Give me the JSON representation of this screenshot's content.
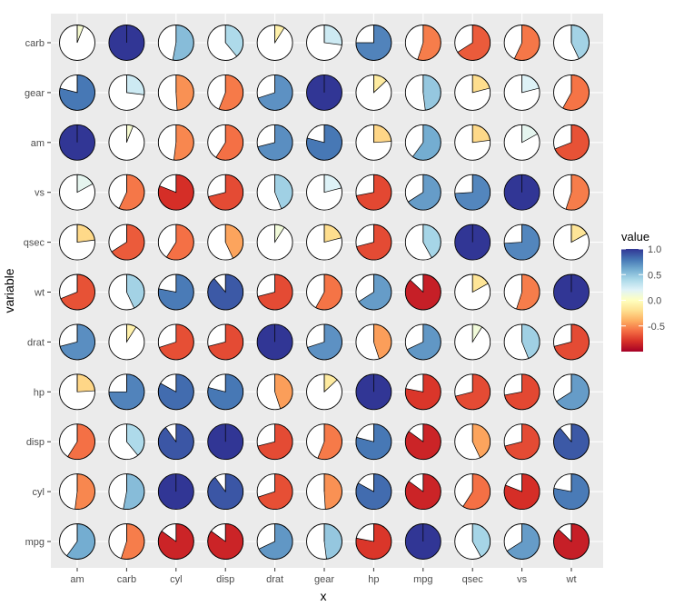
{
  "chart_data": {
    "type": "pie-correlation-matrix",
    "xlabel": "x",
    "ylabel": "variable",
    "variables": [
      "mpg",
      "cyl",
      "disp",
      "hp",
      "drat",
      "wt",
      "qsec",
      "vs",
      "am",
      "gear",
      "carb"
    ],
    "x_order": [
      "am",
      "carb",
      "cyl",
      "disp",
      "drat",
      "gear",
      "hp",
      "mpg",
      "qsec",
      "vs",
      "wt"
    ],
    "y_order_top_to_bottom": [
      "carb",
      "gear",
      "am",
      "vs",
      "qsec",
      "wt",
      "drat",
      "hp",
      "disp",
      "cyl",
      "mpg"
    ],
    "correlation_matrix": [
      [
        1.0,
        -0.85,
        -0.85,
        -0.78,
        0.68,
        -0.87,
        0.42,
        0.66,
        0.6,
        0.48,
        -0.55
      ],
      [
        -0.85,
        1.0,
        0.9,
        0.83,
        -0.7,
        0.78,
        -0.59,
        -0.81,
        -0.52,
        -0.49,
        0.53
      ],
      [
        -0.85,
        0.9,
        1.0,
        0.79,
        -0.71,
        0.89,
        -0.43,
        -0.71,
        -0.59,
        -0.56,
        0.39
      ],
      [
        -0.78,
        0.83,
        0.79,
        1.0,
        -0.45,
        0.66,
        -0.71,
        -0.72,
        -0.24,
        -0.13,
        0.75
      ],
      [
        0.68,
        -0.7,
        -0.71,
        -0.45,
        1.0,
        -0.71,
        0.09,
        0.44,
        0.71,
        0.7,
        -0.09
      ],
      [
        -0.87,
        0.78,
        0.89,
        0.66,
        -0.71,
        1.0,
        -0.17,
        -0.55,
        -0.69,
        -0.58,
        0.43
      ],
      [
        0.42,
        -0.59,
        -0.43,
        -0.71,
        0.09,
        -0.17,
        1.0,
        0.74,
        -0.23,
        -0.21,
        -0.66
      ],
      [
        0.66,
        -0.81,
        -0.71,
        -0.72,
        0.44,
        -0.55,
        0.74,
        1.0,
        0.17,
        0.21,
        -0.57
      ],
      [
        0.6,
        -0.52,
        -0.59,
        -0.24,
        0.71,
        -0.69,
        -0.23,
        0.17,
        1.0,
        0.79,
        0.06
      ],
      [
        0.48,
        -0.49,
        -0.56,
        -0.13,
        0.7,
        -0.58,
        -0.21,
        0.21,
        0.79,
        1.0,
        0.27
      ],
      [
        -0.55,
        0.53,
        0.39,
        0.75,
        -0.09,
        0.43,
        -0.66,
        -0.57,
        0.06,
        0.27,
        1.0
      ]
    ],
    "fill_encoding": "pie slice size = |value|, clockwise from top; color = value",
    "color_scale": {
      "name": "RdYlBu",
      "domain": [
        -1,
        1
      ],
      "stops": [
        "#a50026",
        "#d73027",
        "#f46d43",
        "#fdae61",
        "#fee090",
        "#ffffbf",
        "#e0f3f8",
        "#abd9e9",
        "#74add1",
        "#4575b4",
        "#313695"
      ]
    },
    "legend": {
      "title": "value",
      "placement": "right",
      "ticks": [
        1.0,
        0.5,
        0.0,
        -0.5
      ],
      "tick_labels": [
        "1.0",
        "0.5",
        "0.0",
        "-0.5"
      ]
    },
    "panel_background": "#ebebeb",
    "gridlines": true
  }
}
